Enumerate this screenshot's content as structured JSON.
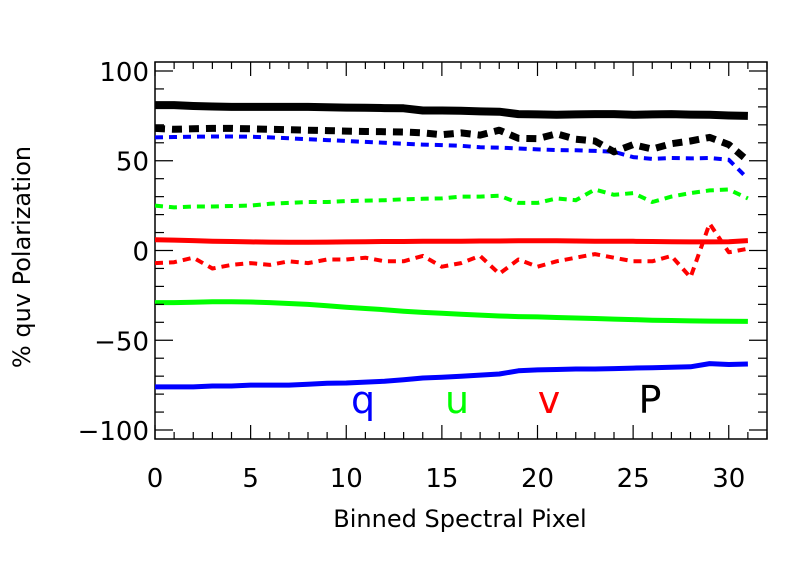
{
  "chart_data": {
    "type": "line",
    "title": "",
    "xlabel": "Binned Spectral Pixel",
    "ylabel": "% quv Polarization",
    "xlim": [
      0,
      32
    ],
    "ylim": [
      -105,
      105
    ],
    "xticks": [
      0,
      5,
      10,
      15,
      20,
      25,
      30
    ],
    "yticks": [
      -100,
      -50,
      0,
      50,
      100
    ],
    "xtick_labels": [
      "0",
      "5",
      "10",
      "15",
      "20",
      "25",
      "30"
    ],
    "ytick_labels": [
      "−100",
      "−50",
      "0",
      "50",
      "100"
    ],
    "grid": false,
    "legend_placement": "bottom-center",
    "x": [
      0,
      1,
      2,
      3,
      4,
      5,
      6,
      7,
      8,
      9,
      10,
      11,
      12,
      13,
      14,
      15,
      16,
      17,
      18,
      19,
      20,
      21,
      22,
      23,
      24,
      25,
      26,
      27,
      28,
      29,
      30,
      31
    ],
    "series": [
      {
        "name": "q",
        "color": "#0000ff",
        "style": "solid",
        "width": 5,
        "values": [
          -76,
          -76,
          -76,
          -75.5,
          -75.5,
          -75,
          -75,
          -75,
          -74.5,
          -74,
          -73.8,
          -73.3,
          -72.8,
          -72,
          -71,
          -70.6,
          -70,
          -69.4,
          -68.8,
          -67,
          -66.5,
          -66.3,
          -66,
          -66,
          -65.8,
          -65.5,
          -65.3,
          -65,
          -64.8,
          -63,
          -63.5,
          -63.2
        ]
      },
      {
        "name": "u",
        "color": "#00ff00",
        "style": "solid",
        "width": 5,
        "values": [
          -29,
          -29,
          -28.8,
          -28.6,
          -28.6,
          -28.7,
          -29,
          -29.5,
          -30,
          -30.8,
          -31.6,
          -32.3,
          -33,
          -33.8,
          -34.5,
          -35,
          -35.5,
          -36,
          -36.5,
          -36.8,
          -37,
          -37.3,
          -37.6,
          -37.9,
          -38.2,
          -38.5,
          -38.8,
          -39,
          -39.2,
          -39.3,
          -39.4,
          -39.5
        ]
      },
      {
        "name": "v",
        "color": "#ff0000",
        "style": "solid",
        "width": 5,
        "values": [
          6,
          5.8,
          5.5,
          5.2,
          5,
          4.8,
          4.7,
          4.6,
          4.6,
          4.7,
          4.8,
          4.9,
          5,
          5,
          5.1,
          5.2,
          5.2,
          5.3,
          5.3,
          5.4,
          5.4,
          5.4,
          5.3,
          5.2,
          5.2,
          5.1,
          5,
          4.9,
          4.8,
          4.8,
          4.9,
          5.5
        ]
      },
      {
        "name": "P",
        "color": "#000000",
        "style": "solid",
        "width": 8,
        "values": [
          81,
          81,
          80.5,
          80.2,
          80,
          80,
          80,
          80,
          80,
          79.8,
          79.6,
          79.5,
          79.3,
          79.2,
          78,
          78,
          77.8,
          77.5,
          77.3,
          76,
          75.8,
          75.6,
          75.8,
          76,
          76,
          75.6,
          75.8,
          76,
          75.7,
          75.6,
          75.2,
          75
        ]
      },
      {
        "name": "",
        "color": "#0000ff",
        "style": "dashed",
        "width": 4,
        "values": [
          63,
          63.2,
          63.4,
          63.5,
          63.5,
          63.4,
          63,
          62.5,
          62,
          61.5,
          61,
          60.5,
          60,
          59.5,
          59,
          58.7,
          58.3,
          57.5,
          57.3,
          56.8,
          56.3,
          56,
          55.8,
          55.5,
          55,
          52,
          51,
          51.5,
          51.3,
          51.5,
          50.5,
          40
        ]
      },
      {
        "name": "",
        "color": "#00ff00",
        "style": "dashed",
        "width": 4,
        "values": [
          25,
          24,
          24.5,
          24.5,
          24.8,
          25,
          26,
          26.5,
          27,
          27,
          27.5,
          27.8,
          28,
          28.5,
          28.8,
          29,
          30,
          30,
          30.5,
          26.5,
          26.5,
          29,
          28,
          34,
          31,
          32,
          27,
          30,
          32,
          33.5,
          34,
          29
        ]
      },
      {
        "name": "",
        "color": "#ff0000",
        "style": "dashed",
        "width": 4,
        "values": [
          -7,
          -6.5,
          -4,
          -10,
          -8,
          -7,
          -8,
          -6,
          -7,
          -5,
          -5,
          -4,
          -6,
          -6,
          -3,
          -9,
          -7,
          -3,
          -13,
          -5,
          -9,
          -6,
          -4,
          -2,
          -4,
          -6,
          -6,
          -3,
          -15,
          15,
          -1,
          1
        ]
      },
      {
        "name": "",
        "color": "#000000",
        "style": "dashed",
        "width": 7,
        "values": [
          68,
          67.5,
          67.8,
          68,
          68,
          67.8,
          67.5,
          67.3,
          67,
          66.8,
          66.5,
          66.3,
          66.2,
          66,
          65.5,
          64.5,
          65.5,
          64.3,
          67,
          62.5,
          62.3,
          65,
          62,
          61,
          55,
          59,
          56.5,
          59.5,
          61,
          63,
          59,
          50
        ]
      }
    ],
    "legend": [
      {
        "label": "q",
        "color": "#0000ff"
      },
      {
        "label": "u",
        "color": "#00ff00"
      },
      {
        "label": "v",
        "color": "#ff0000"
      },
      {
        "label": "P",
        "color": "#000000"
      }
    ]
  }
}
